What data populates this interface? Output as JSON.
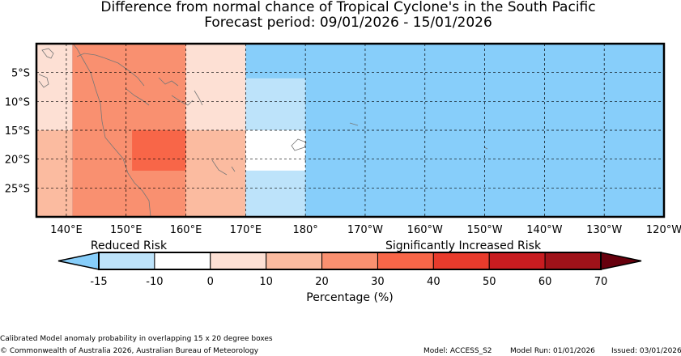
{
  "title_line1": "Difference from normal chance of Tropical Cyclone's in the South Pacific",
  "title_line2": "Forecast period: 09/01/2026 - 15/01/2026",
  "chart_data": {
    "type": "heatmap",
    "title": "Difference from normal chance of Tropical Cyclone's in the South Pacific",
    "subtitle": "Forecast period: 09/01/2026 - 15/01/2026",
    "x_range_lon": [
      135,
      240
    ],
    "y_range_lat": [
      0,
      -30
    ],
    "x_tick_lons": [
      140,
      150,
      160,
      170,
      180,
      190,
      200,
      210,
      220,
      230,
      240
    ],
    "x_tick_labels": [
      "140°E",
      "150°E",
      "160°E",
      "170°E",
      "180°",
      "170°W",
      "160°W",
      "150°W",
      "140°W",
      "130°W",
      "120°W"
    ],
    "y_tick_lats": [
      -5,
      -10,
      -15,
      -20,
      -25
    ],
    "y_tick_labels": [
      "5°S",
      "10°S",
      "15°S",
      "20°S",
      "25°S"
    ],
    "grid": true,
    "cells": [
      {
        "lon": [
          135,
          141
        ],
        "lat": [
          0,
          -15
        ],
        "value": 5
      },
      {
        "lon": [
          135,
          141
        ],
        "lat": [
          -15,
          -30
        ],
        "value": 15
      },
      {
        "lon": [
          141,
          160
        ],
        "lat": [
          0,
          -30
        ],
        "value": 25
      },
      {
        "lon": [
          151,
          161
        ],
        "lat": [
          -15,
          -22
        ],
        "value": 35
      },
      {
        "lon": [
          160,
          170
        ],
        "lat": [
          0,
          -15
        ],
        "value": 5
      },
      {
        "lon": [
          160,
          170
        ],
        "lat": [
          -15,
          -30
        ],
        "value": 15
      },
      {
        "lon": [
          170,
          180
        ],
        "lat": [
          -6,
          -15
        ],
        "value": -12
      },
      {
        "lon": [
          170,
          180
        ],
        "lat": [
          -15,
          -22
        ],
        "value": -5
      },
      {
        "lon": [
          170,
          180
        ],
        "lat": [
          -22,
          -30
        ],
        "value": -12
      }
    ],
    "background_value": -18,
    "colorbar": {
      "boundaries": [
        -15,
        -10,
        0,
        10,
        20,
        30,
        40,
        50,
        60,
        70
      ],
      "tick_labels": [
        "-15",
        "-10",
        "0",
        "10",
        "20",
        "30",
        "40",
        "50",
        "60",
        "70"
      ],
      "colors": [
        "#bde3fa",
        "#ffffff",
        "#fde0d4",
        "#fbbba0",
        "#f99070",
        "#f86648",
        "#e83b2c",
        "#c81c20",
        "#9f1219"
      ],
      "under_color": "#87cefa",
      "over_color": "#67000d",
      "xlabel": "Percentage (%)",
      "left_annotation": "Reduced Risk",
      "right_annotation": "Significantly Increased Risk"
    }
  },
  "footer": {
    "method": "Calibrated Model anomaly probability in overlapping 15 x 20 degree boxes",
    "copyright": "© Commonwealth of Australia 2026, Australian Bureau of Meteorology",
    "model": "Model: ACCESS_S2",
    "model_run": "Model Run: 01/01/2026",
    "issued": "Issued: 03/01/2026"
  }
}
